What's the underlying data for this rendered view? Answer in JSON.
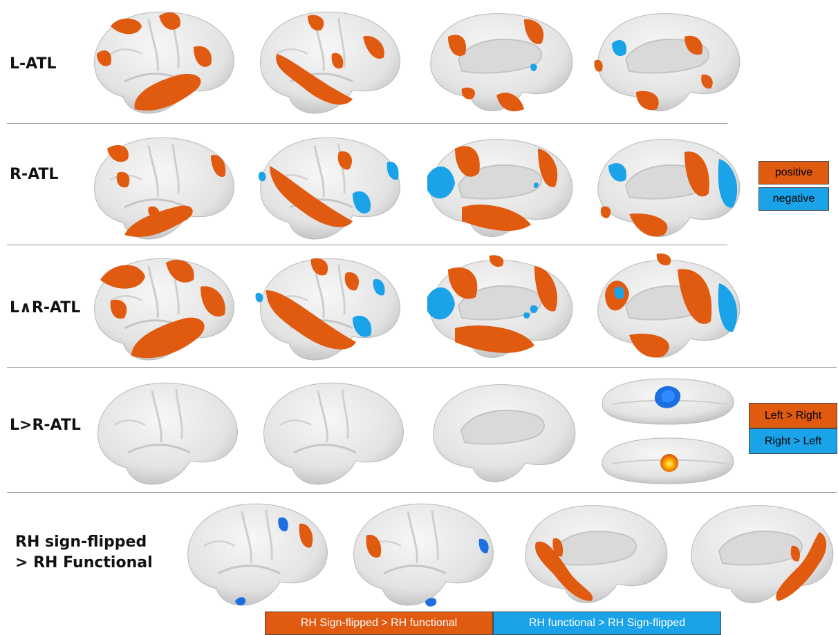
{
  "rows": [
    {
      "label": "L-ATL"
    },
    {
      "label": "R-ATL"
    },
    {
      "label": "L∧R-ATL"
    },
    {
      "label": "L>R-ATL"
    },
    {
      "label_line1": "RH sign-flipped",
      "label_line2": "> RH Functional"
    }
  ],
  "legend_rratl": {
    "positive": "positive",
    "negative": "negative"
  },
  "legend_lr": {
    "left_right": "Left > Right",
    "right_left": "Right > Left"
  },
  "legend_rh": {
    "flipped": "RH Sign-flipped > RH functional",
    "functional": "RH functional > RH Sign-flipped"
  },
  "colors": {
    "positive": "#e05a10",
    "negative": "#1aa3e8",
    "cortex": "#e8e8e8",
    "strong_blue": "#1d6fe0",
    "peak": "#ffd200"
  }
}
